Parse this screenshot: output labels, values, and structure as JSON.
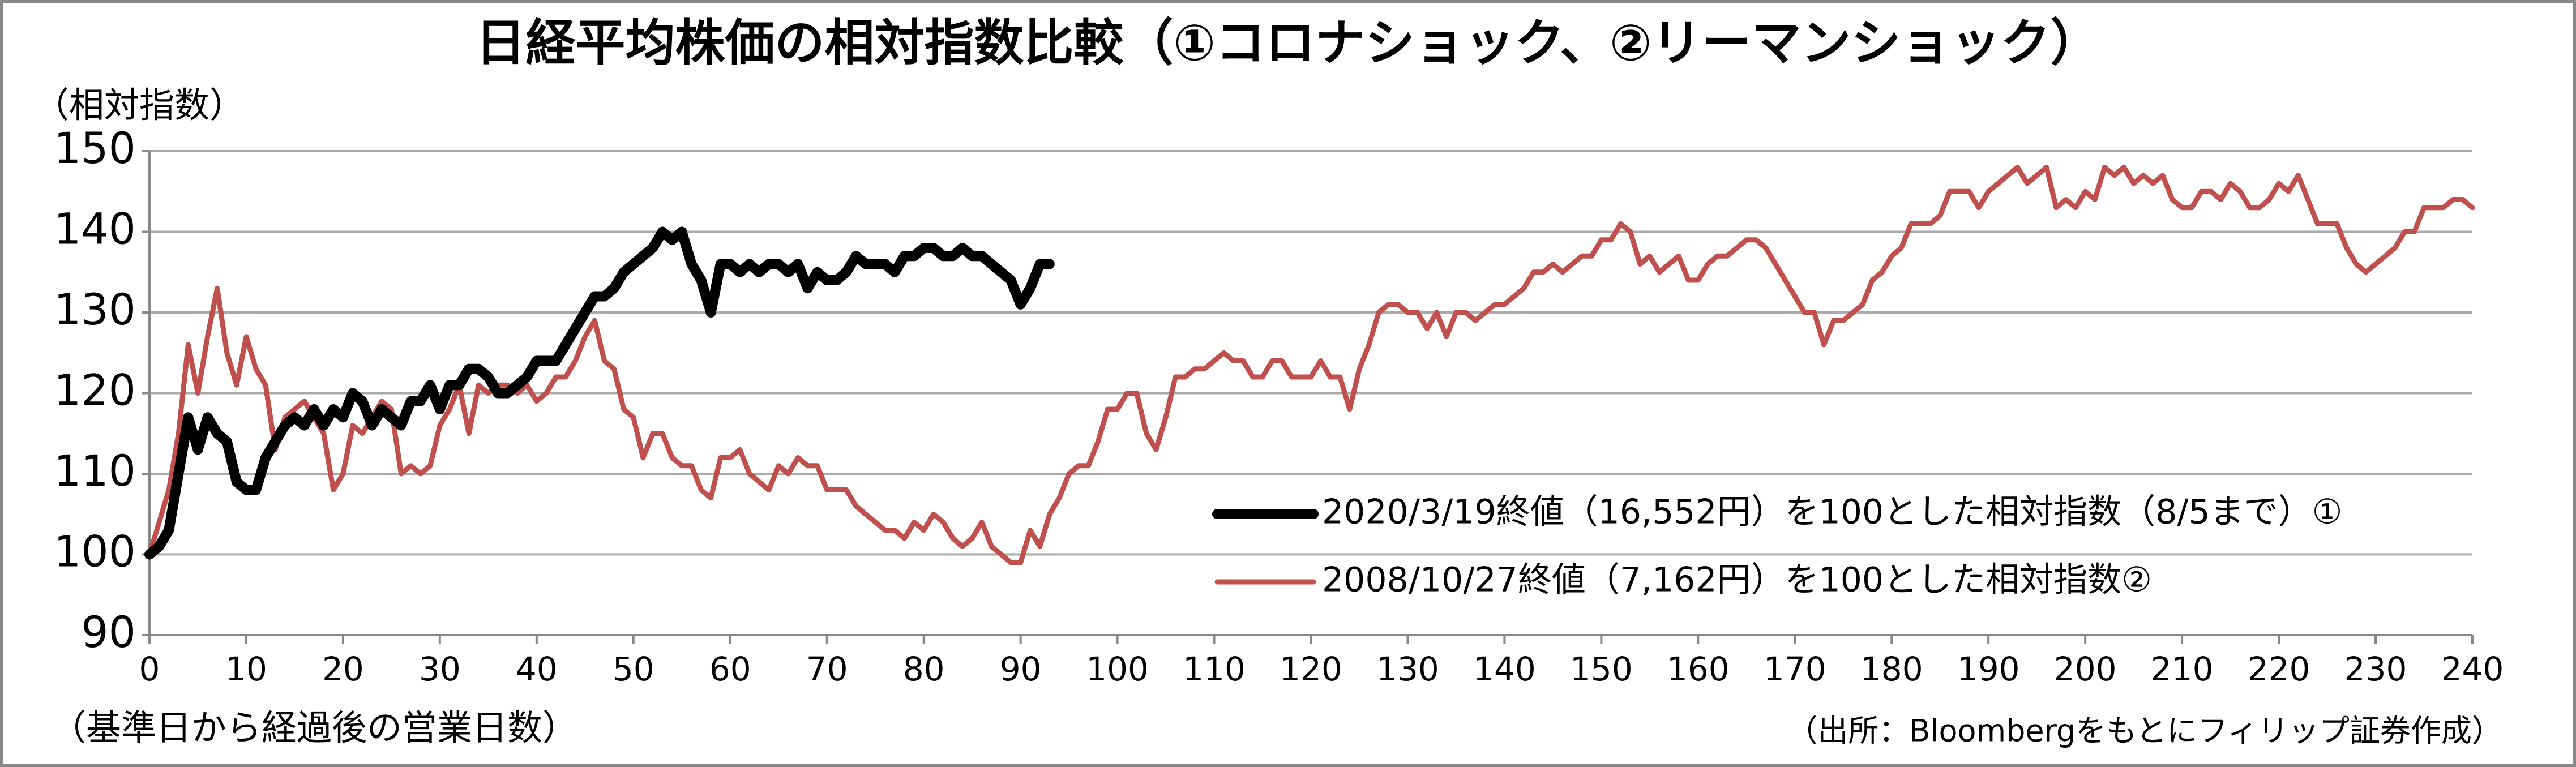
{
  "chart_data": {
    "type": "line",
    "title": "日経平均株価の相対指数比較（①コロナショック、②リーマンショック）",
    "y_label": "（相対指数）",
    "x_label": "（基準日から経過後の営業日数）",
    "source": "（出所：Bloombergをもとにフィリップ証券作成）",
    "x": [
      0,
      1,
      2,
      3,
      4,
      5,
      6,
      7,
      8,
      9,
      10,
      11,
      12,
      13,
      14,
      15,
      16,
      17,
      18,
      19,
      20,
      21,
      22,
      23,
      24,
      25,
      26,
      27,
      28,
      29,
      30,
      31,
      32,
      33,
      34,
      35,
      36,
      37,
      38,
      39,
      40,
      41,
      42,
      43,
      44,
      45,
      46,
      47,
      48,
      49,
      50,
      51,
      52,
      53,
      54,
      55,
      56,
      57,
      58,
      59,
      60,
      61,
      62,
      63,
      64,
      65,
      66,
      67,
      68,
      69,
      70,
      71,
      72,
      73,
      74,
      75,
      76,
      77,
      78,
      79,
      80,
      81,
      82,
      83,
      84,
      85,
      86,
      87,
      88,
      89,
      90,
      91,
      92,
      93,
      94,
      95,
      96,
      97,
      98,
      99,
      100,
      101,
      102,
      103,
      104,
      105,
      106,
      107,
      108,
      109,
      110,
      111,
      112,
      113,
      114,
      115,
      116,
      117,
      118,
      119,
      120,
      121,
      122,
      123,
      124,
      125,
      126,
      127,
      128,
      129,
      130,
      131,
      132,
      133,
      134,
      135,
      136,
      137,
      138,
      139,
      140,
      141,
      142,
      143,
      144,
      145,
      146,
      147,
      148,
      149,
      150,
      151,
      152,
      153,
      154,
      155,
      156,
      157,
      158,
      159,
      160,
      161,
      162,
      163,
      164,
      165,
      166,
      167,
      168,
      169,
      170,
      171,
      172,
      173,
      174,
      175,
      176,
      177,
      178,
      179,
      180,
      181,
      182,
      183,
      184,
      185,
      186,
      187,
      188,
      189,
      190,
      191,
      192,
      193,
      194,
      195,
      196,
      197,
      198,
      199,
      200,
      201,
      202,
      203,
      204,
      205,
      206,
      207,
      208,
      209,
      210,
      211,
      212,
      213,
      214,
      215,
      216,
      217,
      218,
      219,
      220,
      221,
      222,
      223,
      224,
      225,
      226,
      227,
      228,
      229,
      230,
      231,
      232,
      233,
      234,
      235,
      236,
      237,
      238,
      239,
      240
    ],
    "series": [
      {
        "name": "2020/3/19終値（16,552円）を100とした相対指数（8/5まで）①",
        "color": "#000000",
        "values": [
          100,
          101,
          103,
          110,
          117,
          113,
          117,
          115,
          114,
          109,
          108,
          108,
          112,
          114,
          116,
          117,
          116,
          118,
          116,
          118,
          117,
          120,
          119,
          116,
          118,
          117,
          116,
          119,
          119,
          121,
          118,
          121,
          121,
          123,
          123,
          122,
          120,
          120,
          121,
          122,
          124,
          124,
          124,
          126,
          128,
          130,
          132,
          132,
          133,
          135,
          136,
          137,
          138,
          140,
          139,
          140,
          136,
          134,
          130,
          136,
          136,
          135,
          136,
          135,
          136,
          136,
          135,
          136,
          133,
          135,
          134,
          134,
          135,
          137,
          136,
          136,
          136,
          135,
          137,
          137,
          138,
          138,
          137,
          137,
          138,
          137,
          137,
          136,
          135,
          134,
          131,
          133,
          136,
          136,
          null,
          null,
          null,
          null,
          null,
          null,
          null,
          null,
          null,
          null,
          null,
          null,
          null,
          null,
          null,
          null,
          null,
          null,
          null,
          null,
          null,
          null,
          null,
          null,
          null,
          null,
          null,
          null,
          null,
          null,
          null,
          null,
          null,
          null,
          null,
          null,
          null,
          null,
          null,
          null,
          null,
          null,
          null,
          null,
          null,
          null,
          null,
          null,
          null,
          null,
          null,
          null,
          null,
          null,
          null,
          null,
          null,
          null,
          null,
          null,
          null,
          null,
          null,
          null,
          null,
          null,
          null,
          null,
          null,
          null,
          null,
          null,
          null,
          null,
          null,
          null,
          null,
          null,
          null,
          null,
          null,
          null,
          null,
          null,
          null,
          null,
          null,
          null,
          null,
          null,
          null,
          null,
          null,
          null,
          null,
          null,
          null,
          null,
          null,
          null,
          null,
          null,
          null,
          null,
          null,
          null,
          null,
          null,
          null,
          null,
          null,
          null,
          null,
          null,
          null,
          null,
          null,
          null,
          null,
          null,
          null,
          null,
          null,
          null,
          null,
          null,
          null,
          null,
          null,
          null,
          null,
          null,
          null,
          null,
          null,
          null,
          null,
          null,
          null,
          null,
          null,
          null,
          null,
          null,
          null,
          null,
          null
        ]
      },
      {
        "name": "2008/10/27終値（7,162円）を100とした相対指数②",
        "color": "#c0504d",
        "values": [
          100,
          104,
          108,
          115,
          126,
          120,
          127,
          133,
          125,
          121,
          127,
          123,
          121,
          113,
          117,
          118,
          119,
          117,
          115,
          108,
          110,
          116,
          115,
          117,
          119,
          118,
          110,
          111,
          110,
          111,
          116,
          118,
          121,
          115,
          121,
          120,
          121,
          121,
          120,
          121,
          119,
          120,
          122,
          122,
          124,
          127,
          129,
          124,
          123,
          118,
          117,
          112,
          115,
          115,
          112,
          111,
          111,
          108,
          107,
          112,
          112,
          113,
          110,
          109,
          108,
          111,
          110,
          112,
          111,
          111,
          108,
          108,
          108,
          106,
          105,
          104,
          103,
          103,
          102,
          104,
          103,
          105,
          104,
          102,
          101,
          102,
          104,
          101,
          100,
          99,
          99,
          103,
          101,
          105,
          107,
          110,
          111,
          111,
          114,
          118,
          118,
          120,
          120,
          115,
          113,
          117,
          122,
          122,
          123,
          123,
          124,
          125,
          124,
          124,
          122,
          122,
          124,
          124,
          122,
          122,
          122,
          124,
          122,
          122,
          118,
          123,
          126,
          130,
          131,
          131,
          130,
          130,
          128,
          130,
          127,
          130,
          130,
          129,
          130,
          131,
          131,
          132,
          133,
          135,
          135,
          136,
          135,
          136,
          137,
          137,
          139,
          139,
          141,
          140,
          136,
          137,
          135,
          136,
          137,
          134,
          134,
          136,
          137,
          137,
          138,
          139,
          139,
          138,
          136,
          134,
          132,
          130,
          130,
          126,
          129,
          129,
          130,
          131,
          134,
          135,
          137,
          138,
          141,
          141,
          141,
          142,
          145,
          145,
          145,
          143,
          145,
          146,
          147,
          148,
          146,
          147,
          148,
          143,
          144,
          143,
          145,
          144,
          148,
          147,
          148,
          146,
          147,
          146,
          147,
          144,
          143,
          143,
          145,
          145,
          144,
          146,
          145,
          143,
          143,
          144,
          146,
          145,
          147,
          144,
          141,
          141,
          141,
          138,
          136,
          135,
          136,
          137,
          138,
          140,
          140,
          143,
          143,
          143,
          144,
          144,
          143
        ]
      }
    ],
    "xlim": [
      0,
      240
    ],
    "xticks": [
      0,
      10,
      20,
      30,
      40,
      50,
      60,
      70,
      80,
      90,
      100,
      110,
      120,
      130,
      140,
      150,
      160,
      170,
      180,
      190,
      200,
      210,
      220,
      230,
      240
    ],
    "ylim": [
      90,
      150
    ],
    "yticks": [
      90,
      100,
      110,
      120,
      130,
      140,
      150
    ],
    "grid": true
  }
}
